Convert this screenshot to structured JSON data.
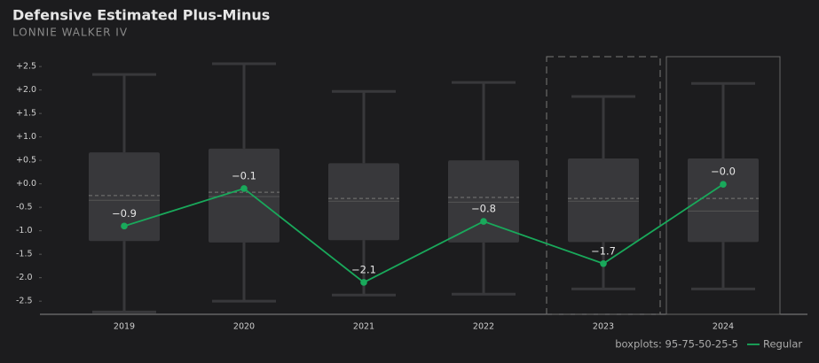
{
  "chart_data": {
    "type": "box",
    "title": "Defensive Estimated Plus-Minus",
    "subtitle": "LONNIE WALKER IV",
    "categories": [
      "2019",
      "2020",
      "2021",
      "2022",
      "2023",
      "2024"
    ],
    "boxes": [
      {
        "p5": -2.73,
        "p25": -1.22,
        "p50": -0.35,
        "p75": 0.67,
        "p95": 2.33,
        "mean": -0.25
      },
      {
        "p5": -2.5,
        "p25": -1.25,
        "p50": -0.27,
        "p75": 0.75,
        "p95": 2.56,
        "mean": -0.18
      },
      {
        "p5": -2.37,
        "p25": -1.2,
        "p50": -0.37,
        "p75": 0.44,
        "p95": 1.97,
        "mean": -0.31
      },
      {
        "p5": -2.35,
        "p25": -1.25,
        "p50": -0.39,
        "p75": 0.5,
        "p95": 2.16,
        "mean": -0.29
      },
      {
        "p5": -2.24,
        "p25": -1.24,
        "p50": -0.37,
        "p75": 0.54,
        "p95": 1.86,
        "mean": -0.31
      },
      {
        "p5": -2.24,
        "p25": -1.24,
        "p50": -0.58,
        "p75": 0.54,
        "p95": 2.14,
        "mean": -0.31
      }
    ],
    "box_color": "#38383b",
    "box_note": "boxplots: 95-75-50-25-5",
    "series": [
      {
        "name": "Regular",
        "color": "#19a95b",
        "values": [
          -0.9,
          -0.1,
          -2.1,
          -0.8,
          -1.7,
          -0.01
        ],
        "value_labels": [
          "−0.9",
          "−0.1",
          "−2.1",
          "−0.8",
          "−1.7",
          "−0.0"
        ]
      }
    ],
    "highlight": {
      "dashed": 4,
      "solid": 5
    },
    "ylim": [
      -2.78,
      2.71
    ],
    "yticks": [
      {
        "value": 2.5,
        "label": "+2.5"
      },
      {
        "value": 2.0,
        "label": "+2.0"
      },
      {
        "value": 1.5,
        "label": "+1.5"
      },
      {
        "value": 1.0,
        "label": "+1.0"
      },
      {
        "value": 0.5,
        "label": "+0.5"
      },
      {
        "value": 0.0,
        "label": "+0.0"
      },
      -0.5,
      {
        "value": -1.0,
        "label": "-1.0"
      },
      -1.5,
      {
        "value": -2.0,
        "label": "-2.0"
      },
      -2.5
    ]
  }
}
